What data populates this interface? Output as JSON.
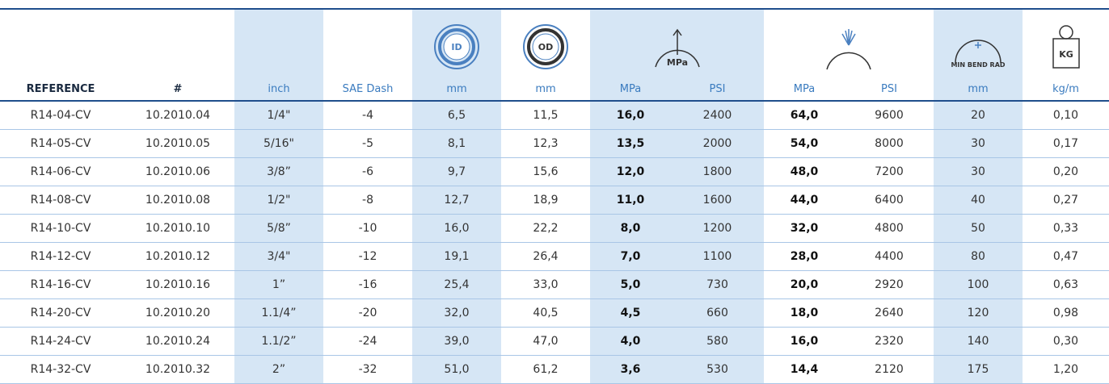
{
  "table": {
    "icons": {
      "id": "ID",
      "od": "OD",
      "pressure": "MPa",
      "bend": "MIN BEND RAD",
      "weight": "KG"
    },
    "header": [
      "REFERENCE",
      "#",
      "inch",
      "SAE Dash",
      "mm",
      "mm",
      "MPa",
      "PSI",
      "MPa",
      "PSI",
      "mm",
      "kg/m"
    ],
    "rows": [
      [
        "R14-04-CV",
        "10.2010.04",
        "1/4\"",
        "-4",
        "6,5",
        "11,5",
        "16,0",
        "2400",
        "64,0",
        "9600",
        "20",
        "0,10"
      ],
      [
        "R14-05-CV",
        "10.2010.05",
        "5/16\"",
        "-5",
        "8,1",
        "12,3",
        "13,5",
        "2000",
        "54,0",
        "8000",
        "30",
        "0,17"
      ],
      [
        "R14-06-CV",
        "10.2010.06",
        "3/8”",
        "-6",
        "9,7",
        "15,6",
        "12,0",
        "1800",
        "48,0",
        "7200",
        "30",
        "0,20"
      ],
      [
        "R14-08-CV",
        "10.2010.08",
        "1/2\"",
        "-8",
        "12,7",
        "18,9",
        "11,0",
        "1600",
        "44,0",
        "6400",
        "40",
        "0,27"
      ],
      [
        "R14-10-CV",
        "10.2010.10",
        "5/8”",
        "-10",
        "16,0",
        "22,2",
        "8,0",
        "1200",
        "32,0",
        "4800",
        "50",
        "0,33"
      ],
      [
        "R14-12-CV",
        "10.2010.12",
        "3/4\"",
        "-12",
        "19,1",
        "26,4",
        "7,0",
        "1100",
        "28,0",
        "4400",
        "80",
        "0,47"
      ],
      [
        "R14-16-CV",
        "10.2010.16",
        "1”",
        "-16",
        "25,4",
        "33,0",
        "5,0",
        "730",
        "20,0",
        "2920",
        "100",
        "0,63"
      ],
      [
        "R14-20-CV",
        "10.2010.20",
        "1.1/4”",
        "-20",
        "32,0",
        "40,5",
        "4,5",
        "660",
        "18,0",
        "2640",
        "120",
        "0,98"
      ],
      [
        "R14-24-CV",
        "10.2010.24",
        "1.1/2”",
        "-24",
        "39,0",
        "47,0",
        "4,0",
        "580",
        "16,0",
        "2320",
        "140",
        "0,30"
      ],
      [
        "R14-32-CV",
        "10.2010.32",
        "2”",
        "-32",
        "51,0",
        "61,2",
        "3,6",
        "530",
        "14,4",
        "2120",
        "175",
        "1,20"
      ]
    ]
  }
}
